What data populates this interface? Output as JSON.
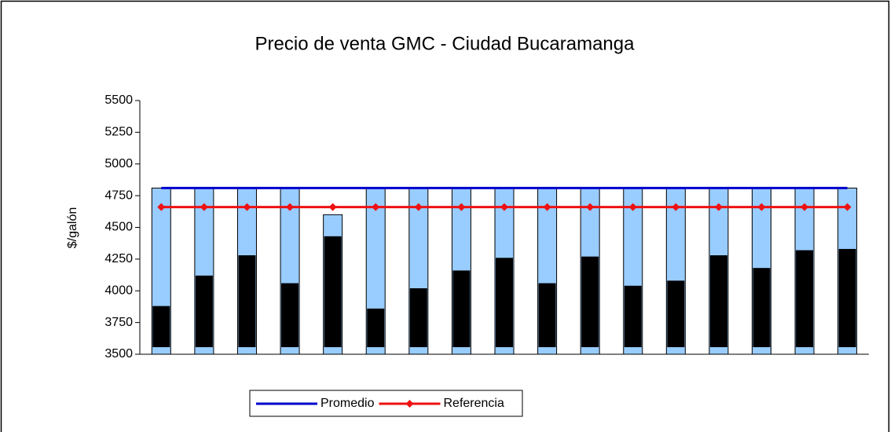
{
  "chart_data": {
    "type": "bar",
    "title": "Precio de venta GMC - Ciudad Bucaramanga",
    "y_label": "$/galón",
    "categories": [
      null,
      null,
      null,
      null,
      null,
      null,
      null,
      null,
      null,
      null,
      null,
      null,
      null,
      null,
      null,
      null,
      null
    ],
    "series": [
      {
        "color": "#99ccff",
        "values": [
          4810,
          4810,
          4810,
          4810,
          4600,
          4810,
          4810,
          4810,
          4810,
          4810,
          4810,
          4810,
          4810,
          4810,
          4810,
          4810,
          4810
        ]
      },
      {
        "color": "#000000",
        "values": [
          3880,
          4120,
          4280,
          4060,
          4430,
          3860,
          4020,
          4160,
          4260,
          4060,
          4270,
          4040,
          4080,
          4280,
          4180,
          4320,
          4330
        ]
      },
      {
        "name": "Promedio",
        "type": "line",
        "color": "#0000cc",
        "values": [
          4810,
          4810,
          4810,
          4810,
          4810,
          4810,
          4810,
          4810,
          4810,
          4810,
          4810,
          4810,
          4810,
          4810,
          4810,
          4810,
          4810
        ]
      },
      {
        "name": "Referencia",
        "type": "line",
        "color": "#ee1111",
        "marker": "diamond",
        "values": [
          4660,
          4660,
          4660,
          4660,
          4660,
          4660,
          4660,
          4660,
          4660,
          4660,
          4660,
          4660,
          4660,
          4660,
          4660,
          4660,
          4660
        ]
      }
    ],
    "ylim": [
      3500,
      5500
    ],
    "yticks": [
      3500,
      3750,
      4000,
      4250,
      4500,
      4750,
      5000,
      5250,
      5500
    ],
    "legend": "bottom"
  }
}
